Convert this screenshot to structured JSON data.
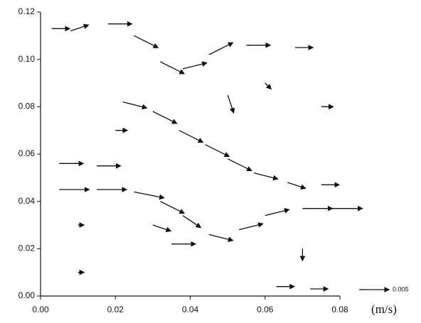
{
  "chart_data": {
    "type": "quiver",
    "x": [
      0.003,
      0.008,
      0.018,
      0.025,
      0.032,
      0.038,
      0.045,
      0.055,
      0.068,
      0.022,
      0.03,
      0.037,
      0.044,
      0.05,
      0.057,
      0.066,
      0.075,
      0.005,
      0.015,
      0.005,
      0.015,
      0.025,
      0.032,
      0.038,
      0.045,
      0.053,
      0.06,
      0.07,
      0.078,
      0.03,
      0.035,
      0.063,
      0.072,
      0.01,
      0.02,
      0.06,
      0.07,
      0.01,
      0.075,
      0.05
    ],
    "y": [
      0.113,
      0.112,
      0.115,
      0.11,
      0.099,
      0.096,
      0.102,
      0.106,
      0.105,
      0.082,
      0.078,
      0.07,
      0.064,
      0.058,
      0.052,
      0.048,
      0.047,
      0.056,
      0.055,
      0.045,
      0.045,
      0.044,
      0.04,
      0.034,
      0.026,
      0.028,
      0.034,
      0.037,
      0.037,
      0.03,
      0.022,
      0.004,
      0.003,
      0.01,
      0.07,
      0.09,
      0.02,
      0.03,
      0.08,
      0.085
    ],
    "u": [
      0.003,
      0.003,
      0.004,
      0.004,
      0.004,
      0.004,
      0.004,
      0.004,
      0.003,
      0.004,
      0.004,
      0.004,
      0.004,
      0.004,
      0.004,
      0.003,
      0.003,
      0.004,
      0.004,
      0.005,
      0.005,
      0.005,
      0.004,
      0.003,
      0.004,
      0.004,
      0.004,
      0.005,
      0.005,
      0.003,
      0.004,
      0.003,
      0.003,
      0.001,
      0.002,
      0.001,
      0.0,
      0.001,
      0.002,
      0.001
    ],
    "v": [
      0.0,
      0.001,
      0.0,
      -0.002,
      -0.002,
      0.001,
      0.002,
      0.0,
      0.0,
      -0.001,
      -0.002,
      -0.002,
      -0.002,
      -0.002,
      -0.001,
      -0.001,
      0.0,
      0.0,
      0.0,
      0.0,
      0.0,
      -0.001,
      -0.002,
      -0.002,
      -0.001,
      0.001,
      0.001,
      0.0,
      0.0,
      -0.001,
      0.0,
      0.0,
      0.0,
      0.0,
      0.0,
      -0.001,
      -0.002,
      0.0,
      0.0,
      -0.003
    ],
    "color": "#111111",
    "xlim": [
      0,
      0.08
    ],
    "ylim": [
      0,
      0.12
    ],
    "xticks": [
      {
        "value": 0,
        "label": "0.00"
      },
      {
        "value": 0.02,
        "label": "0.02"
      },
      {
        "value": 0.04,
        "label": "0.04"
      },
      {
        "value": 0.06,
        "label": "0.06"
      },
      {
        "value": 0.08,
        "label": "0.08"
      }
    ],
    "yticks": [
      {
        "value": 0,
        "label": "0.00"
      },
      {
        "value": 0.02,
        "label": "0.02"
      },
      {
        "value": 0.04,
        "label": "0.04"
      },
      {
        "value": 0.06,
        "label": "0.06"
      },
      {
        "value": 0.08,
        "label": "0.08"
      },
      {
        "value": 0.1,
        "label": "0.10"
      },
      {
        "value": 0.12,
        "label": "0.12"
      }
    ],
    "reference_value": 0.005,
    "unit": "(m/s)"
  }
}
